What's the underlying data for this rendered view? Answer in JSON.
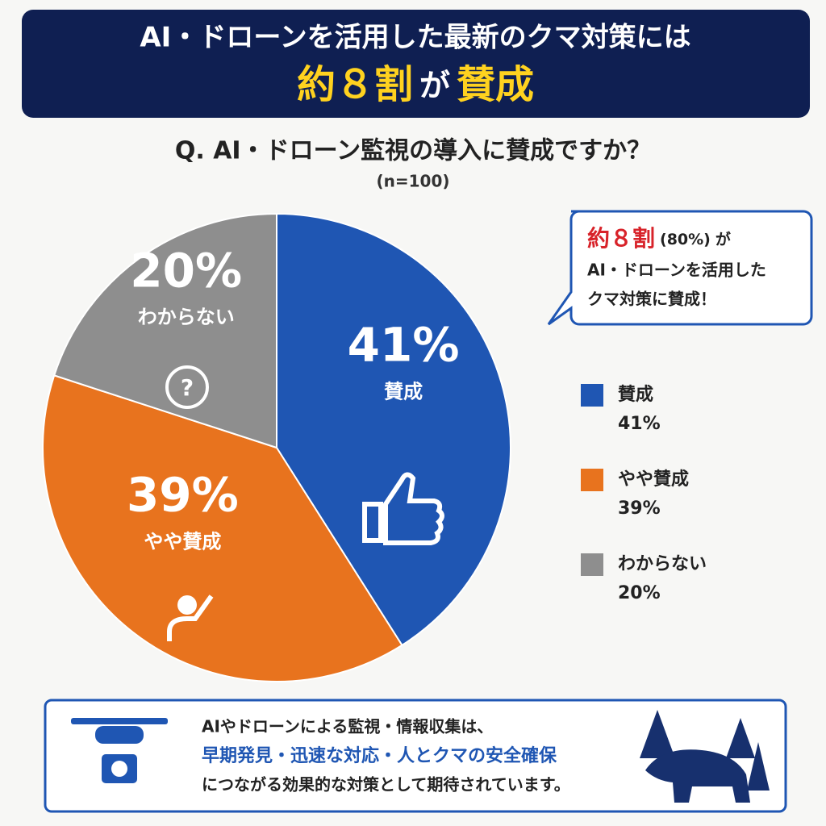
{
  "header": {
    "line1": "AI・ドローンを活用した最新のクマ対策には",
    "highlight1": "約８割",
    "connector": "が",
    "highlight2": "賛成"
  },
  "chart_data": {
    "type": "pie",
    "title": "Q. AI・ドローン監視の導入に賛成ですか？",
    "subtitle": "(n=100)",
    "categories": [
      "賛成",
      "やや賛成",
      "わからない"
    ],
    "values": [
      41,
      39,
      20
    ],
    "value_labels": [
      "41%",
      "39%",
      "20%"
    ],
    "colors": [
      "#1f56b3",
      "#e8731e",
      "#8e8e8e"
    ]
  },
  "callout": {
    "highlight": "約８割",
    "percent": "(80%)",
    "connector": "が",
    "line2": "AI・ドローンを活用した",
    "line3": "クマ対策に賛成！"
  },
  "footer": {
    "line1": "AIやドローンによる監視・情報収集は、",
    "line2": "早期発見・迅速な対応・人とクマの安全確保",
    "line3": "につながる効果的な対策として期待されています。"
  }
}
